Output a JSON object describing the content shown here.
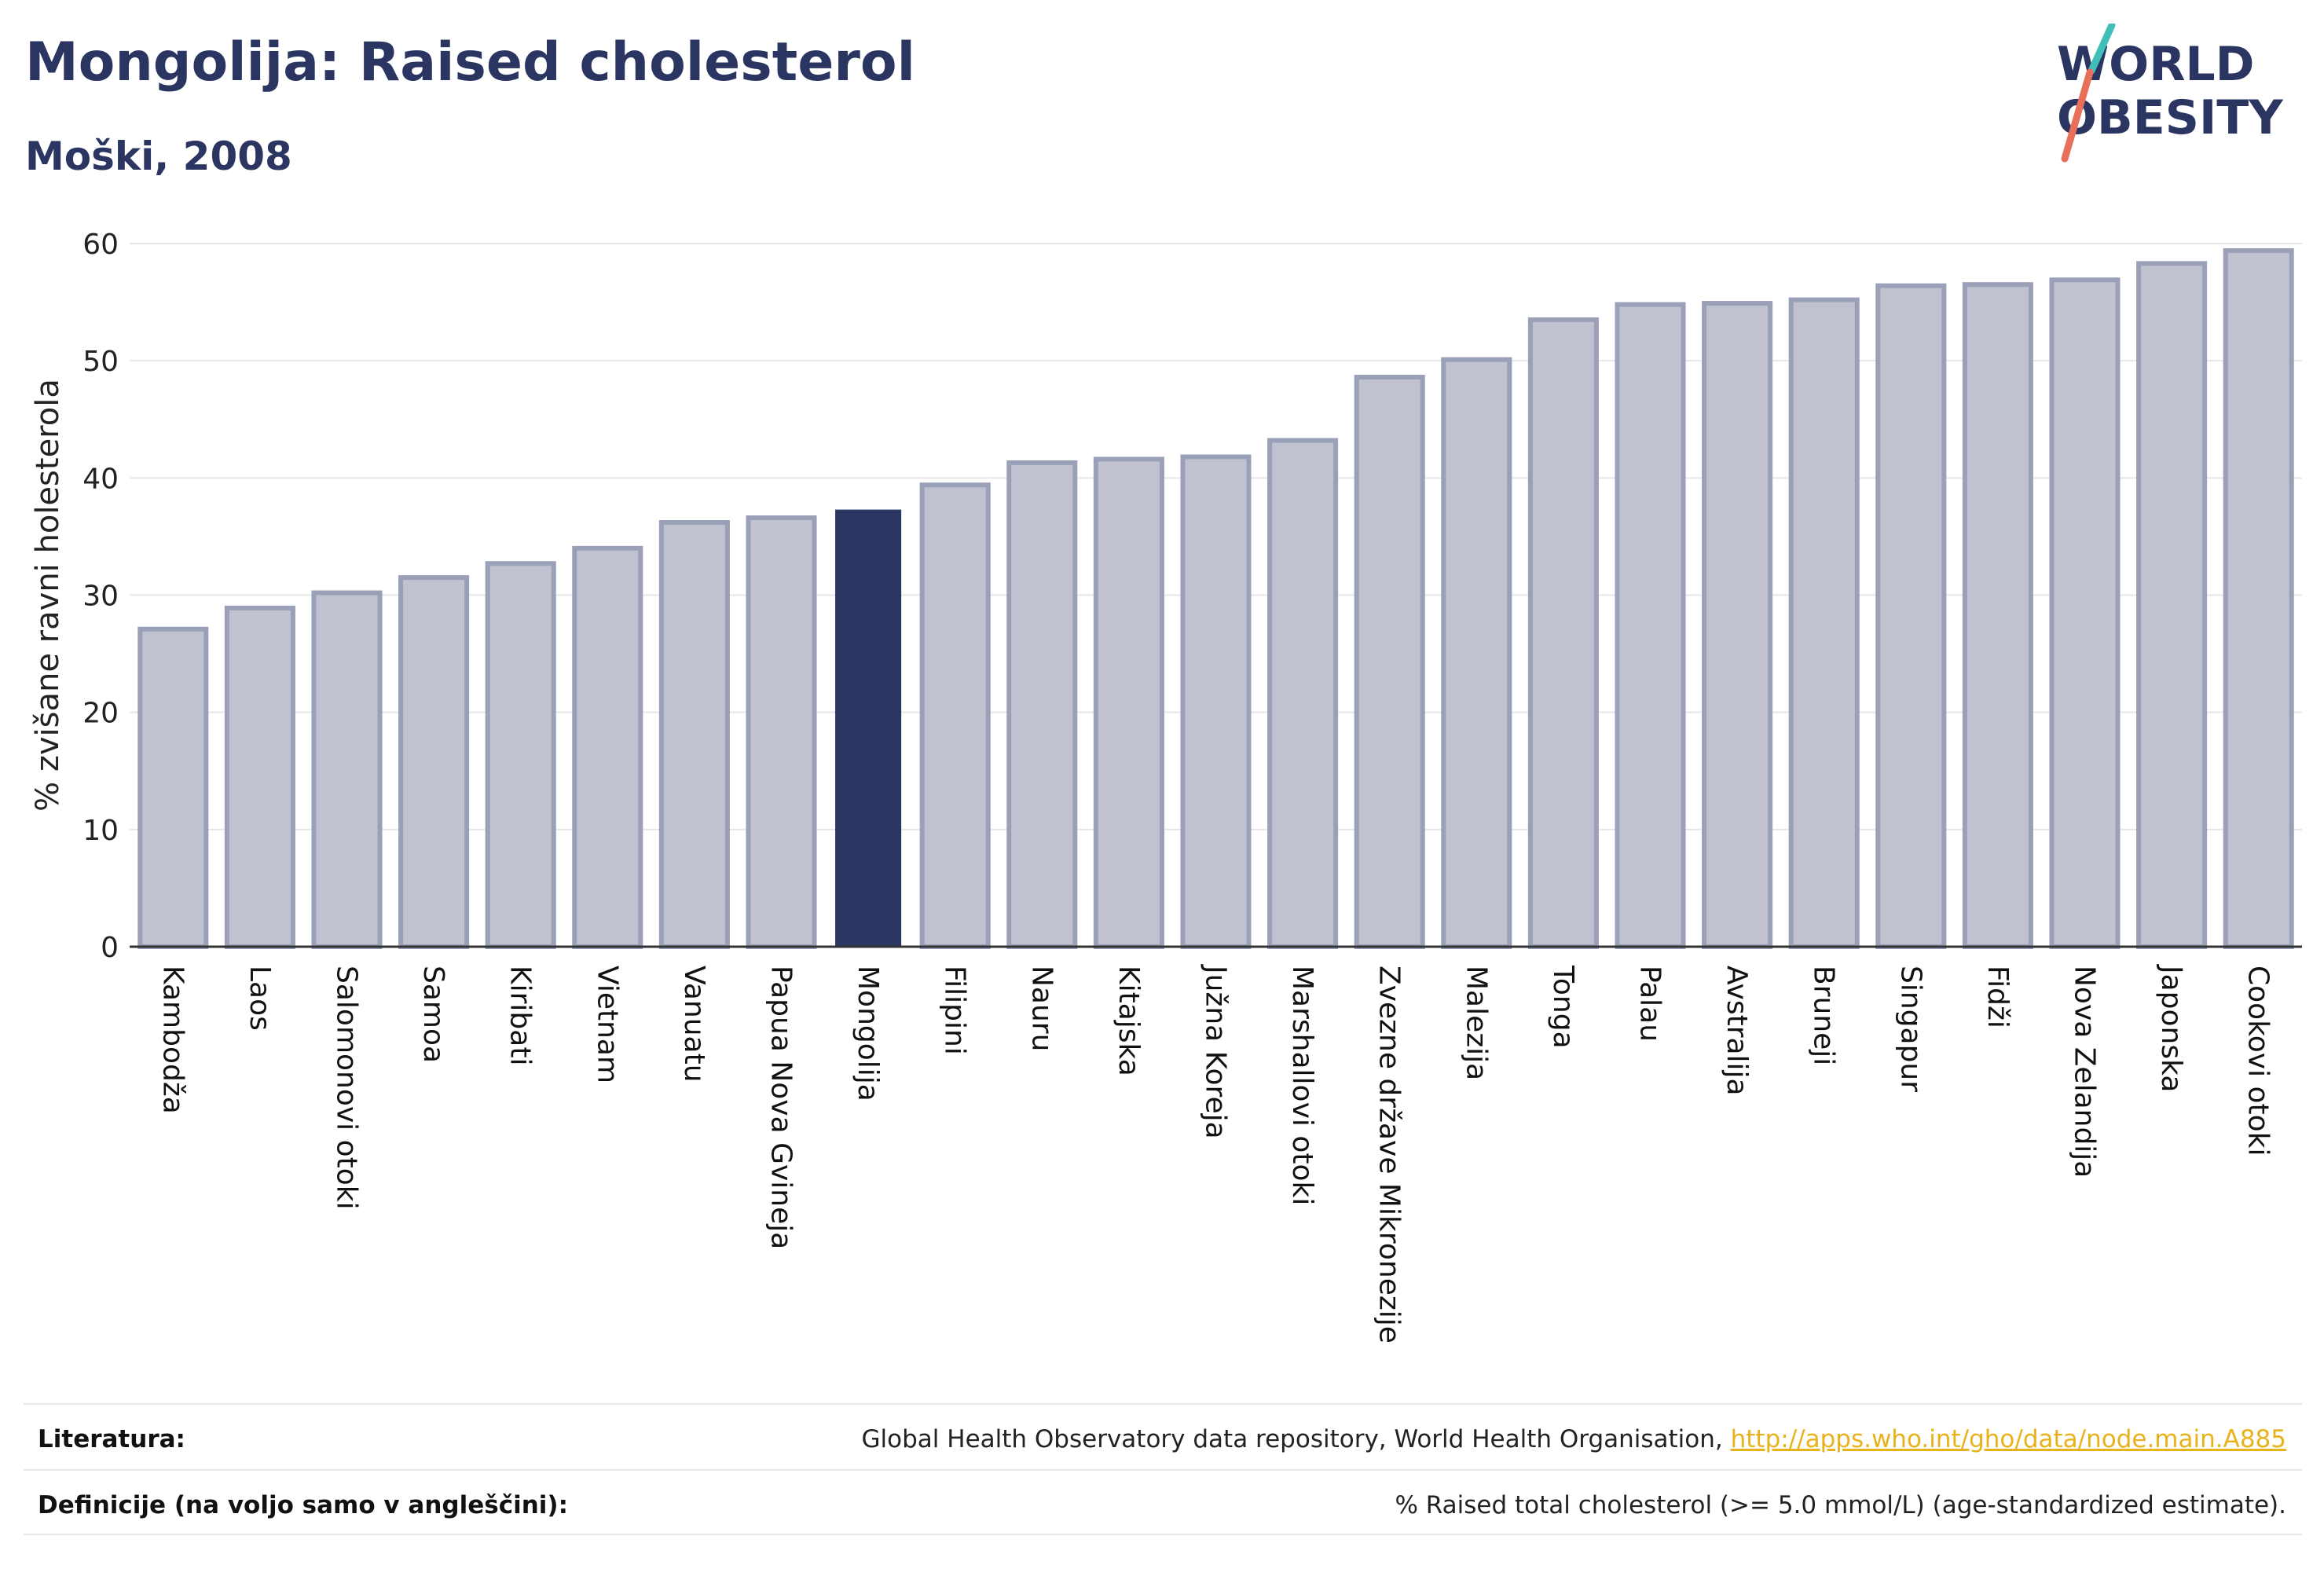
{
  "title": "Mongolija: Raised cholesterol",
  "subtitle": "Moški, 2008",
  "logo": {
    "line1": "WORLD",
    "line2": "OBESITY"
  },
  "colors": {
    "bar": "#c0c3cf",
    "bar_stroke": "#9aa0b8",
    "highlight": "#2b3561",
    "text": "#2b3561",
    "link": "#e8b21a"
  },
  "chart_data": {
    "type": "bar",
    "ylabel": "% zvišane ravni holesterola",
    "ylim": [
      0,
      60
    ],
    "yticks": [
      0,
      10,
      20,
      30,
      40,
      50,
      60
    ],
    "grid": true,
    "highlight": "Mongolija",
    "categories": [
      "Kambodža",
      "Laos",
      "Salomonovi otoki",
      "Samoa",
      "Kiribati",
      "Vietnam",
      "Vanuatu",
      "Papua Nova Gvineja",
      "Mongolija",
      "Filipini",
      "Nauru",
      "Kitajska",
      "Južna Koreja",
      "Marshallovi otoki",
      "Zvezne države Mikronezije",
      "Malezija",
      "Tonga",
      "Palau",
      "Avstralija",
      "Bruneji",
      "Singapur",
      "Fidži",
      "Nova Zelandija",
      "Japonska",
      "Cookovi otoki"
    ],
    "values": [
      27.1,
      28.9,
      30.2,
      31.5,
      32.7,
      34.0,
      36.2,
      36.6,
      37.3,
      39.4,
      41.3,
      41.6,
      41.8,
      43.2,
      48.6,
      50.1,
      53.5,
      54.8,
      54.9,
      55.2,
      56.4,
      56.5,
      56.9,
      58.3,
      59.4
    ]
  },
  "footer": {
    "sources_label": "Literatura:",
    "sources_text": "Global Health Observatory data repository, World Health Organisation, ",
    "sources_link": "http://apps.who.int/gho/data/node.main.A885",
    "definitions_label": "Definicije (na voljo samo v angleščini):",
    "definitions_text": "% Raised total cholesterol (>= 5.0 mmol/L) (age-standardized estimate)."
  }
}
